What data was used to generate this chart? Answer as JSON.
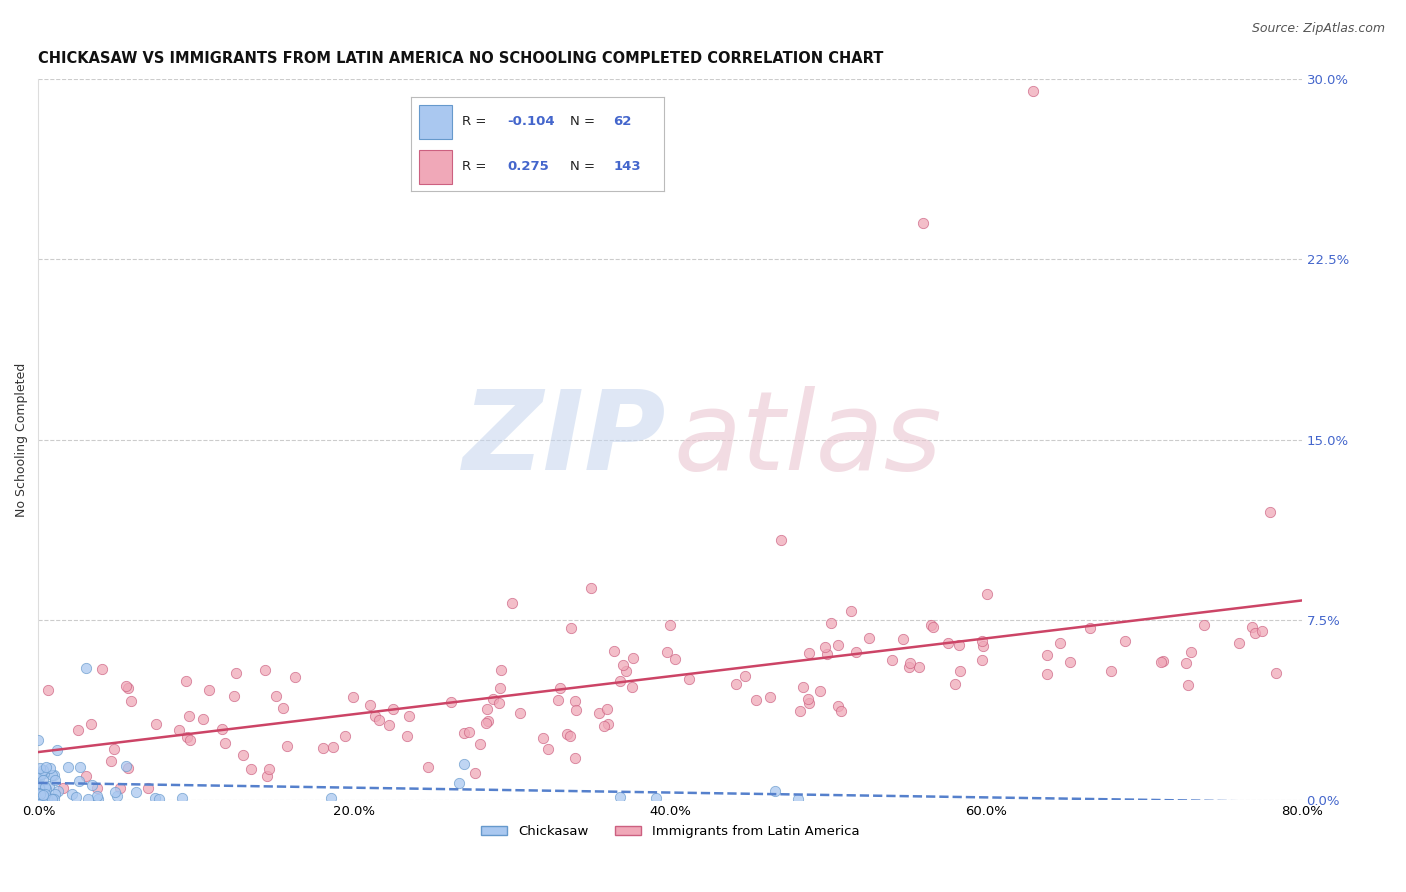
{
  "title": "CHICKASAW VS IMMIGRANTS FROM LATIN AMERICA NO SCHOOLING COMPLETED CORRELATION CHART",
  "source": "Source: ZipAtlas.com",
  "ylabel": "No Schooling Completed",
  "xlim": [
    0.0,
    0.8
  ],
  "ylim": [
    0.0,
    0.3
  ],
  "grid_color": "#cccccc",
  "background_color": "#ffffff",
  "series": [
    {
      "name": "Chickasaw",
      "color": "#aac8f0",
      "edge_color": "#6699cc",
      "line_color": "#5580cc",
      "line_style": "--",
      "R": -0.104,
      "N": 62
    },
    {
      "name": "Immigrants from Latin America",
      "color": "#f0a8b8",
      "edge_color": "#cc6080",
      "line_color": "#cc4466",
      "line_style": "-",
      "R": 0.275,
      "N": 143
    }
  ],
  "legend_R_color": "#4466cc",
  "legend_N_color": "#4466cc",
  "right_axis_color": "#4466cc",
  "ytick_positions": [
    0.0,
    0.075,
    0.15,
    0.225,
    0.3
  ],
  "ytick_labels": [
    "0.0%",
    "7.5%",
    "15.0%",
    "22.5%",
    "30.0%"
  ],
  "xtick_positions": [
    0.0,
    0.2,
    0.4,
    0.6,
    0.8
  ],
  "xtick_labels": [
    "0.0%",
    "20.0%",
    "40.0%",
    "60.0%",
    "80.0%"
  ],
  "title_fontsize": 10.5,
  "source_fontsize": 9,
  "axis_label_fontsize": 9,
  "tick_fontsize": 9.5,
  "legend_fontsize": 9.5
}
